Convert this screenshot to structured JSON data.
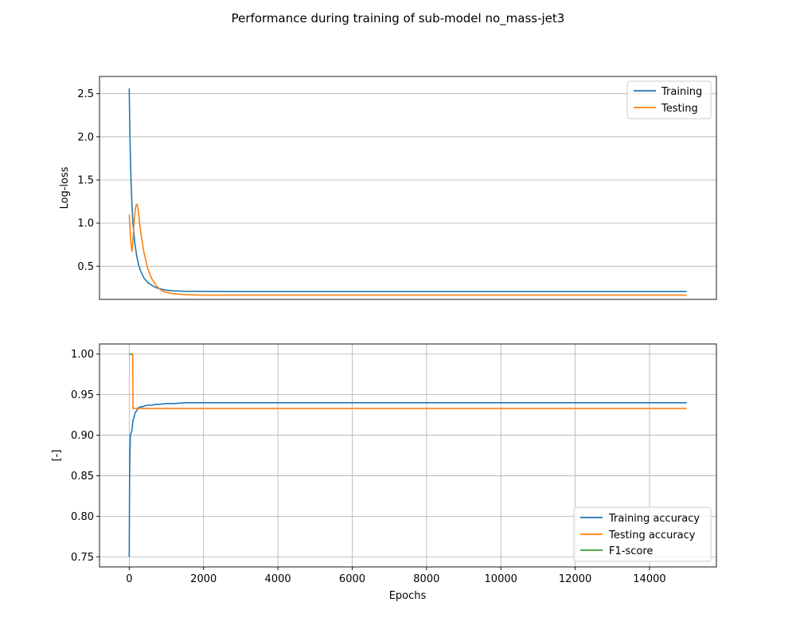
{
  "chart_data": {
    "title": "Performance during training of sub-model no_mass-jet3",
    "colors": {
      "blue": "#1f77b4",
      "orange": "#ff7f0e",
      "green": "#2ca02c"
    },
    "subplots": [
      {
        "type": "line",
        "ylabel": "Log-loss",
        "xlabel": "",
        "xlim": [
          -800,
          15800
        ],
        "ylim": [
          0.115,
          2.7
        ],
        "yticks": [
          "0.5",
          "1.0",
          "1.5",
          "2.0",
          "2.5"
        ],
        "xticks": [],
        "grid": "y",
        "legend": "top-right",
        "series": [
          {
            "name": "Training",
            "color": "#1f77b4",
            "x": [
              0,
              10,
              20,
              30,
              50,
              75,
              100,
              150,
              200,
              250,
              300,
              400,
              500,
              600,
              700,
              800,
              1000,
              1200,
              1500,
              2000,
              3000,
              15000
            ],
            "y": [
              2.56,
              2.25,
              2.0,
              1.78,
              1.47,
              1.2,
              1.0,
              0.77,
              0.62,
              0.52,
              0.45,
              0.36,
              0.31,
              0.28,
              0.255,
              0.24,
              0.222,
              0.214,
              0.209,
              0.207,
              0.206,
              0.206
            ]
          },
          {
            "name": "Testing",
            "color": "#ff7f0e",
            "x": [
              0,
              25,
              50,
              75,
              100,
              130,
              160,
              185,
              210,
              240,
              280,
              320,
              400,
              500,
              600,
              700,
              800,
              900,
              1000,
              1200,
              1500,
              2000,
              15000
            ],
            "y": [
              1.1,
              0.9,
              0.75,
              0.67,
              0.8,
              1.0,
              1.15,
              1.21,
              1.22,
              1.15,
              1.0,
              0.86,
              0.65,
              0.47,
              0.36,
              0.29,
              0.24,
              0.21,
              0.195,
              0.18,
              0.17,
              0.165,
              0.165
            ]
          }
        ]
      },
      {
        "type": "line",
        "ylabel": "[-]",
        "xlabel": "Epochs",
        "xlim": [
          -800,
          15800
        ],
        "ylim": [
          0.7375,
          1.0125
        ],
        "yticks": [
          "0.75",
          "0.80",
          "0.85",
          "0.90",
          "0.95",
          "1.00"
        ],
        "xticks": [
          "0",
          "2000",
          "4000",
          "6000",
          "8000",
          "10000",
          "12000",
          "14000"
        ],
        "grid": "both",
        "legend": "bottom-right",
        "series": [
          {
            "name": "Training accuracy",
            "color": "#1f77b4",
            "x": [
              0,
              5,
              10,
              20,
              30,
              50,
              70,
              100,
              130,
              160,
              200,
              250,
              300,
              350,
              400,
              500,
              600,
              700,
              800,
              1000,
              1200,
              1500,
              1800,
              2000,
              15000
            ],
            "y": [
              0.75,
              0.8,
              0.85,
              0.88,
              0.9,
              0.903,
              0.905,
              0.918,
              0.922,
              0.928,
              0.93,
              0.934,
              0.935,
              0.935,
              0.936,
              0.937,
              0.937,
              0.938,
              0.938,
              0.939,
              0.939,
              0.94,
              0.94,
              0.94,
              0.94
            ]
          },
          {
            "name": "Testing accuracy",
            "color": "#ff7f0e",
            "x": [
              0,
              95,
              100,
              15000
            ],
            "y": [
              1.0,
              1.0,
              0.933,
              0.933
            ]
          },
          {
            "name": "F1-score",
            "color": "#2ca02c",
            "x": [
              0,
              80
            ],
            "y": [
              1.0,
              1.0
            ]
          }
        ]
      }
    ]
  }
}
